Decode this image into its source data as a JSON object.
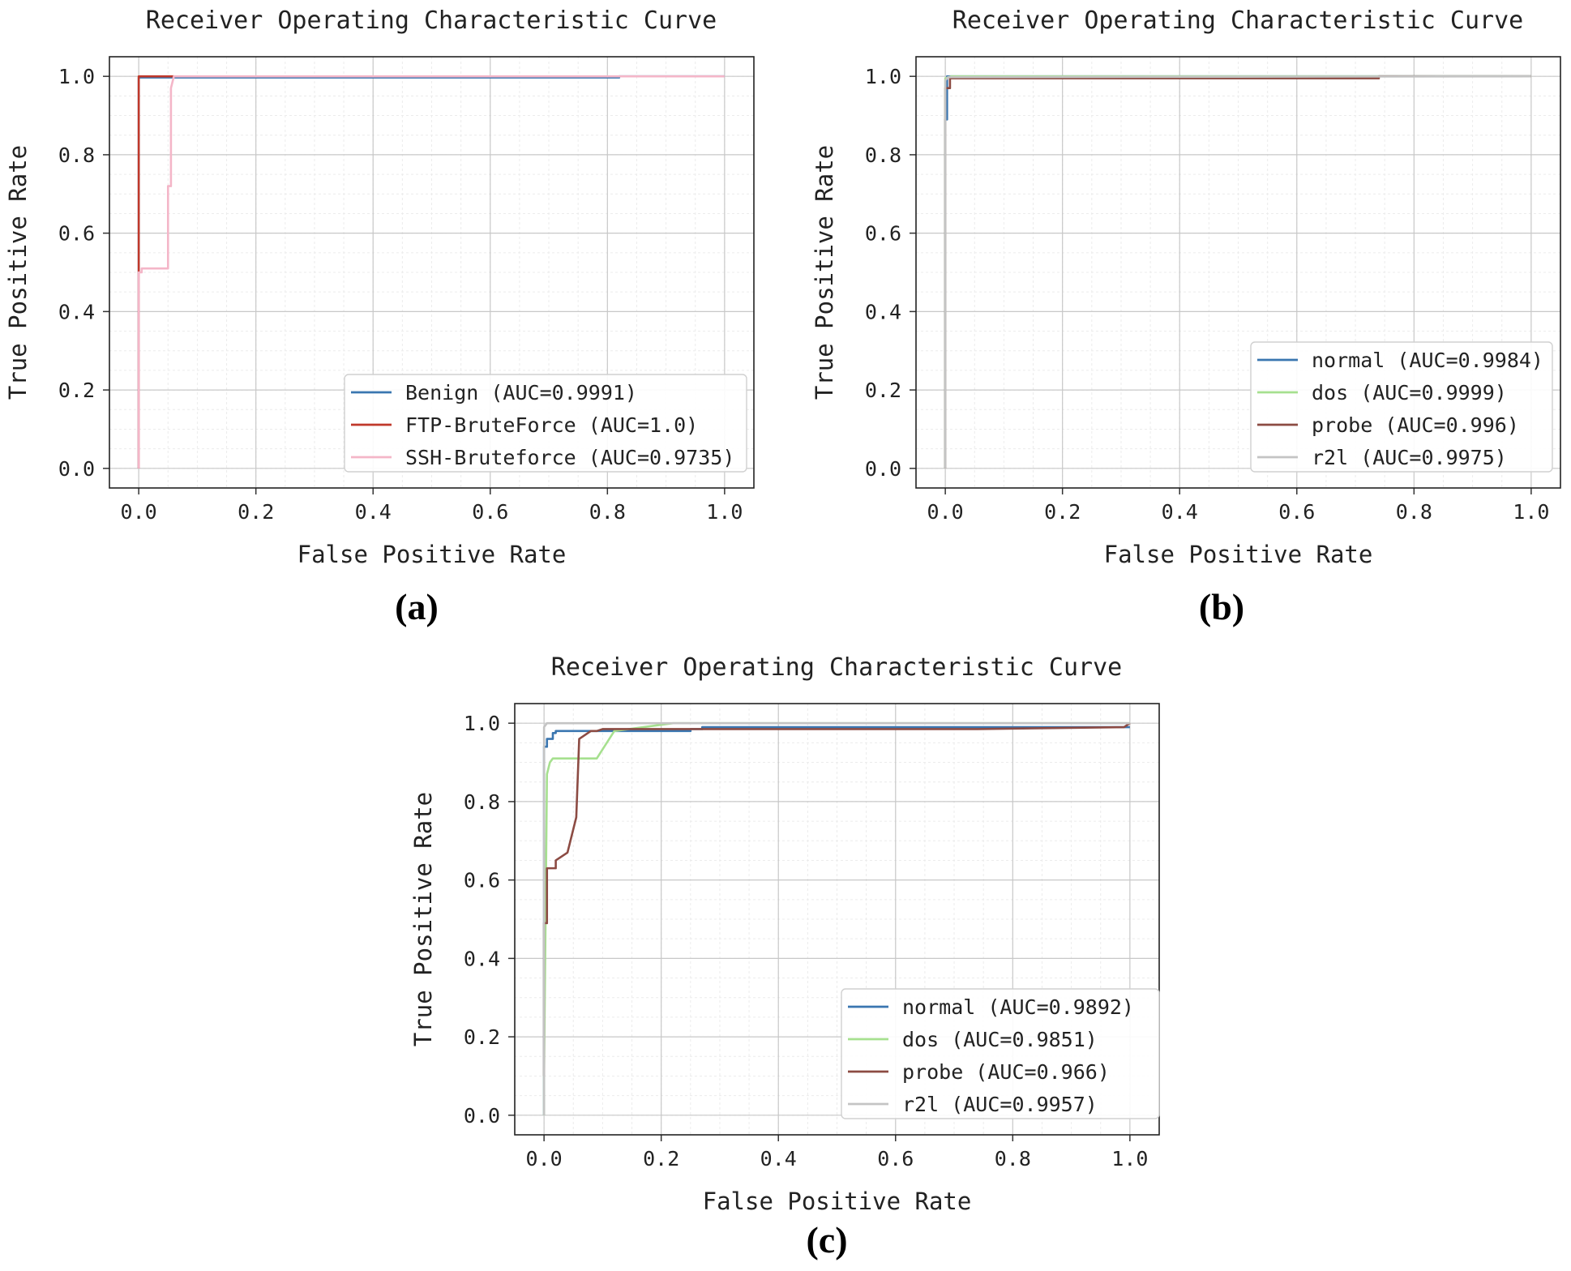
{
  "chart_data": [
    {
      "type": "line",
      "panel_label": "(a)",
      "title": "Receiver Operating Characteristic Curve",
      "xlabel": "False Positive Rate",
      "ylabel": "True Positive Rate",
      "xlim": [
        0,
        1
      ],
      "ylim": [
        0,
        1
      ],
      "xticks": [
        "0.0",
        "0.2",
        "0.4",
        "0.6",
        "0.8",
        "1.0"
      ],
      "yticks": [
        "0.0",
        "0.2",
        "0.4",
        "0.6",
        "0.8",
        "1.0"
      ],
      "grid": true,
      "legend_position": "lower-right",
      "series": [
        {
          "name": "Benign (AUC=0.9991)",
          "color": "#3a76b0",
          "x": [
            0.0,
            0.0,
            0.06,
            0.82,
            0.82,
            1.0
          ],
          "y": [
            0.0,
            0.997,
            0.997,
            0.997,
            1.0,
            1.0
          ]
        },
        {
          "name": "FTP-BruteForce (AUC=1.0)",
          "color": "#c0392b",
          "x": [
            0.0,
            0.0,
            0.0,
            0.06
          ],
          "y": [
            0.0,
            0.5,
            1.0,
            1.0
          ]
        },
        {
          "name": "SSH-Bruteforce (AUC=0.9735)",
          "color": "#f4b6c8",
          "x": [
            0.0,
            0.0,
            0.005,
            0.005,
            0.05,
            0.05,
            0.055,
            0.055,
            0.06,
            0.3,
            0.82,
            1.0
          ],
          "y": [
            0.0,
            0.5,
            0.5,
            0.51,
            0.51,
            0.72,
            0.72,
            0.97,
            1.0,
            1.0,
            1.0,
            1.0
          ]
        }
      ]
    },
    {
      "type": "line",
      "panel_label": "(b)",
      "title": "Receiver Operating Characteristic Curve",
      "xlabel": "False Positive Rate",
      "ylabel": "True Positive Rate",
      "xlim": [
        0,
        1
      ],
      "ylim": [
        0,
        1
      ],
      "xticks": [
        "0.0",
        "0.2",
        "0.4",
        "0.6",
        "0.8",
        "1.0"
      ],
      "yticks": [
        "0.0",
        "0.2",
        "0.4",
        "0.6",
        "0.8",
        "1.0"
      ],
      "grid": true,
      "legend_position": "lower-right",
      "series": [
        {
          "name": "normal (AUC=0.9984)",
          "color": "#3a76b0",
          "x": [
            0.0,
            0.0,
            0.003,
            0.003,
            0.055,
            0.055,
            1.0
          ],
          "y": [
            0.0,
            0.89,
            0.89,
            1.0,
            1.0,
            1.0,
            1.0
          ]
        },
        {
          "name": "dos (AUC=0.9999)",
          "color": "#a6e08f",
          "x": [
            0.0,
            0.0,
            0.01,
            1.0
          ],
          "y": [
            0.0,
            0.995,
            1.0,
            1.0
          ]
        },
        {
          "name": "probe (AUC=0.996)",
          "color": "#8c4b43",
          "x": [
            0.0,
            0.0,
            0.008,
            0.008,
            0.74,
            0.74,
            1.0
          ],
          "y": [
            0.0,
            0.97,
            0.97,
            0.995,
            0.995,
            1.0,
            1.0
          ]
        },
        {
          "name": "r2l (AUC=0.9975)",
          "color": "#c4c4c4",
          "x": [
            0.0,
            0.0,
            0.005,
            1.0
          ],
          "y": [
            0.0,
            0.99,
            0.998,
            1.0
          ]
        }
      ]
    },
    {
      "type": "line",
      "panel_label": "(c)",
      "title": "Receiver Operating Characteristic Curve",
      "xlabel": "False Positive Rate",
      "ylabel": "True Positive Rate",
      "xlim": [
        0,
        1
      ],
      "ylim": [
        0,
        1
      ],
      "xticks": [
        "0.0",
        "0.2",
        "0.4",
        "0.6",
        "0.8",
        "1.0"
      ],
      "yticks": [
        "0.0",
        "0.2",
        "0.4",
        "0.6",
        "0.8",
        "1.0"
      ],
      "grid": true,
      "legend_position": "lower-right",
      "series": [
        {
          "name": "normal (AUC=0.9892)",
          "color": "#3a76b0",
          "x": [
            0.0,
            0.0,
            0.005,
            0.005,
            0.015,
            0.015,
            0.02,
            0.02,
            0.25,
            0.25,
            0.27,
            0.27,
            1.0
          ],
          "y": [
            0.0,
            0.94,
            0.94,
            0.96,
            0.96,
            0.975,
            0.975,
            0.98,
            0.98,
            0.985,
            0.985,
            0.99,
            0.99
          ]
        },
        {
          "name": "dos (AUC=0.9851)",
          "color": "#a6e08f",
          "x": [
            0.0,
            0.0,
            0.005,
            0.01,
            0.015,
            0.09,
            0.12,
            0.22,
            0.22,
            1.0
          ],
          "y": [
            0.0,
            0.1,
            0.87,
            0.9,
            0.91,
            0.91,
            0.98,
            1.0,
            1.0,
            1.0
          ]
        },
        {
          "name": "probe (AUC=0.966)",
          "color": "#8c4b43",
          "x": [
            0.0,
            0.0,
            0.005,
            0.005,
            0.01,
            0.01,
            0.02,
            0.02,
            0.04,
            0.045,
            0.055,
            0.06,
            0.06,
            0.07,
            0.08,
            0.09,
            0.1,
            0.12,
            0.74,
            0.99,
            1.0
          ],
          "y": [
            0.1,
            0.49,
            0.49,
            0.63,
            0.63,
            0.63,
            0.63,
            0.65,
            0.67,
            0.7,
            0.76,
            0.96,
            0.96,
            0.97,
            0.98,
            0.98,
            0.985,
            0.985,
            0.985,
            0.99,
            1.0
          ]
        },
        {
          "name": "r2l (AUC=0.9957)",
          "color": "#c4c4c4",
          "x": [
            0.0,
            0.0,
            0.005,
            1.0
          ],
          "y": [
            0.0,
            0.99,
            1.0,
            1.0
          ]
        }
      ]
    }
  ]
}
